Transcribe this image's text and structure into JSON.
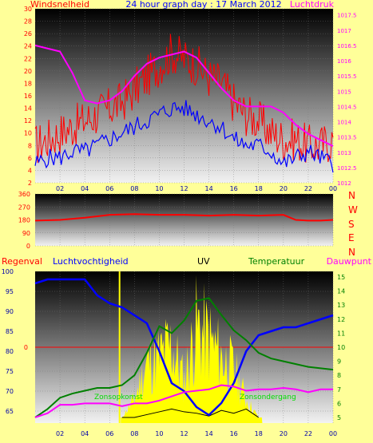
{
  "colors": {
    "page_bg": "#ffff99",
    "wind_gust": "#ff0000",
    "wind_avg": "#0000ff",
    "pressure": "#ff00ff",
    "direction": "#ff0000",
    "humidity": "#0000ff",
    "temperature": "#008000",
    "dewpoint": "#ff00ff",
    "uv": "#ffff00",
    "solar": "#000000",
    "rain": "#ff0000"
  },
  "top_panel": {
    "left_title": "Windsnelheid",
    "center_title": "24 hour graph day : 17 March 2012",
    "right_title": "Luchtdruk"
  },
  "mid_panel": {
    "compass_letters": [
      "N",
      "W",
      "S",
      "E",
      "N"
    ]
  },
  "bottom_panel": {
    "labels": {
      "rain": "Regenval",
      "humidity": "Luchtvochtigheid",
      "uv": "UV",
      "temperature": "Temperatuur",
      "dewpoint": "Dauwpunt"
    },
    "overlay_left": "Zonsopkomst",
    "overlay_right": "Zonsondergang"
  },
  "chart_data": [
    {
      "type": "line",
      "title": "24 hour graph day : 17 March 2012",
      "x_ticks": [
        "02",
        "04",
        "06",
        "08",
        "10",
        "12",
        "14",
        "16",
        "18",
        "20",
        "22",
        "00"
      ],
      "y_left": {
        "label": "Windsnelheid",
        "ticks": [
          2,
          4,
          6,
          8,
          10,
          12,
          14,
          16,
          18,
          20,
          22,
          24,
          26,
          28,
          30
        ],
        "range": [
          2,
          30
        ]
      },
      "y_right": {
        "label": "Luchtdruk",
        "ticks": [
          1012,
          1012.5,
          1013,
          1013.5,
          1014,
          1014.5,
          1015,
          1015.5,
          1016,
          1016.5,
          1017,
          1017.5
        ],
        "range": [
          1012,
          1017.7
        ]
      },
      "x_hours": [
        0,
        1,
        2,
        3,
        4,
        5,
        6,
        7,
        8,
        9,
        10,
        11,
        12,
        13,
        14,
        15,
        16,
        17,
        18,
        19,
        20,
        21,
        22,
        23,
        24
      ],
      "series": [
        {
          "key": "gust",
          "axis": "left",
          "values": [
            8,
            9,
            10,
            11,
            12,
            13,
            14,
            15,
            17,
            19,
            21,
            23,
            22,
            21,
            19,
            18,
            15,
            13,
            12,
            10,
            9,
            9,
            8,
            8,
            9
          ]
        },
        {
          "key": "avg",
          "axis": "left",
          "values": [
            5,
            6,
            6,
            7,
            7,
            8,
            9,
            10,
            11,
            12,
            13,
            14,
            14,
            13,
            12,
            11,
            9,
            8,
            8,
            7,
            5,
            6,
            7,
            6,
            5
          ]
        },
        {
          "key": "pressure",
          "axis": "right",
          "values": [
            1016.5,
            1016.4,
            1016.3,
            1015.6,
            1014.7,
            1014.6,
            1014.7,
            1015.0,
            1015.5,
            1015.9,
            1016.1,
            1016.2,
            1016.3,
            1016.1,
            1015.6,
            1015.1,
            1014.7,
            1014.5,
            1014.5,
            1014.5,
            1014.3,
            1013.9,
            1013.6,
            1013.4,
            1013.2
          ]
        }
      ]
    },
    {
      "type": "line",
      "title": "",
      "y_left": {
        "ticks": [
          0,
          90,
          180,
          270,
          360
        ],
        "range": [
          0,
          360
        ]
      },
      "x_hours": [
        0,
        2,
        4,
        6,
        8,
        10,
        12,
        14,
        16,
        18,
        20,
        21,
        22,
        23,
        24
      ],
      "series": [
        {
          "key": "direction",
          "values": [
            175,
            180,
            195,
            215,
            220,
            215,
            215,
            210,
            215,
            210,
            215,
            180,
            175,
            175,
            180
          ]
        }
      ]
    },
    {
      "type": "line",
      "title": "",
      "y_left": {
        "label": "Luchtvochtigheid",
        "ticks": [
          65,
          70,
          75,
          80,
          85,
          90,
          95,
          100
        ],
        "range": [
          62,
          100
        ]
      },
      "y_right": {
        "label": "Temperatuur",
        "ticks": [
          5,
          6,
          7,
          8,
          9,
          10,
          11,
          12,
          13,
          14,
          15
        ],
        "range": [
          4.6,
          15.4
        ]
      },
      "rain_marker": {
        "label": "0",
        "value": 0
      },
      "x_hours": [
        0,
        1,
        2,
        3,
        4,
        5,
        6,
        7,
        8,
        9,
        10,
        11,
        12,
        13,
        14,
        15,
        16,
        17,
        18,
        19,
        20,
        21,
        22,
        23,
        24
      ],
      "series": [
        {
          "key": "humidity",
          "axis": "left",
          "values": [
            97,
            98,
            98,
            98,
            98,
            94,
            92,
            91,
            89,
            87,
            80,
            72,
            70,
            66,
            64,
            67,
            72,
            80,
            84,
            85,
            86,
            86,
            87,
            88,
            89
          ]
        },
        {
          "key": "temperature",
          "axis": "right",
          "values": [
            5,
            5.6,
            6.4,
            6.7,
            6.9,
            7.1,
            7.1,
            7.3,
            8.0,
            9.6,
            11.5,
            11.0,
            11.9,
            13.3,
            13.5,
            12.3,
            11.2,
            10.5,
            9.6,
            9.2,
            9.0,
            8.8,
            8.6,
            8.5,
            8.4
          ]
        },
        {
          "key": "dewpoint",
          "axis": "right",
          "values": [
            5,
            5.3,
            5.9,
            5.9,
            6.0,
            6.0,
            6.0,
            5.8,
            6.0,
            6.0,
            6.2,
            6.5,
            6.8,
            6.9,
            7.0,
            7.3,
            7.2,
            6.9,
            7.0,
            7.0,
            7.1,
            7.0,
            6.8,
            7.0,
            7.0
          ]
        },
        {
          "key": "solar",
          "axis": "right",
          "values": [
            null,
            null,
            null,
            null,
            null,
            null,
            null,
            5.0,
            5.0,
            5.2,
            5.4,
            5.6,
            5.4,
            5.3,
            5.1,
            5.5,
            5.3,
            5.6,
            5.0,
            null,
            null,
            null,
            null,
            null,
            null
          ]
        },
        {
          "key": "uv",
          "axis": "right",
          "values": [
            null,
            null,
            null,
            null,
            null,
            null,
            null,
            5.0,
            6.5,
            9.5,
            10.0,
            11.0,
            8.0,
            12.5,
            11.5,
            10.0,
            9.0,
            6.5,
            5.0,
            null,
            null,
            null,
            null,
            null,
            null
          ]
        }
      ]
    }
  ]
}
